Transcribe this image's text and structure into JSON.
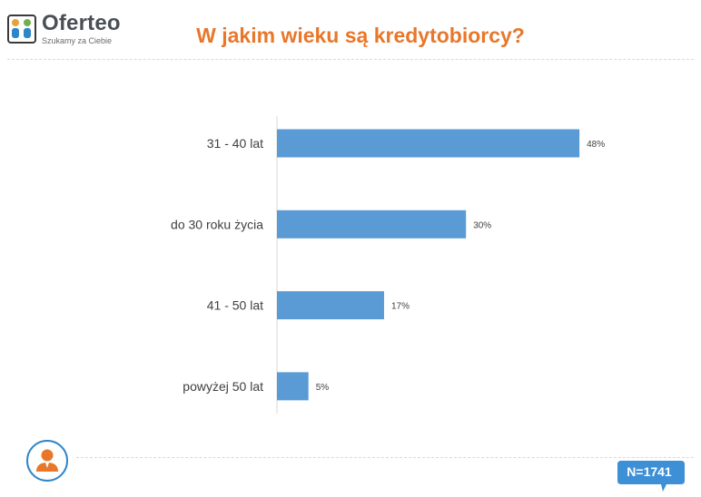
{
  "header": {
    "brand_name": "Oferteo",
    "brand_tagline": "Szukamy za Ciebie",
    "title": "W jakim wieku są kredytobiorcy?"
  },
  "footer": {
    "sample_size": "N=1741",
    "person_icon": "person-icon"
  },
  "colors": {
    "bar": "#5b9bd5",
    "title": "#e8772b",
    "badge": "#3d8fd6",
    "person_circle_border": "#2e86c9",
    "person_body": "#e8772b"
  },
  "chart_data": {
    "type": "bar",
    "orientation": "horizontal",
    "categories": [
      "31 - 40 lat",
      "do 30 roku życia",
      "41 - 50 lat",
      "powyżej 50 lat"
    ],
    "values": [
      48,
      30,
      17,
      5
    ],
    "data_labels": [
      "48%",
      "30%",
      "17%",
      "5%"
    ],
    "unit": "%",
    "xlim": [
      0,
      100
    ],
    "grid": false
  }
}
